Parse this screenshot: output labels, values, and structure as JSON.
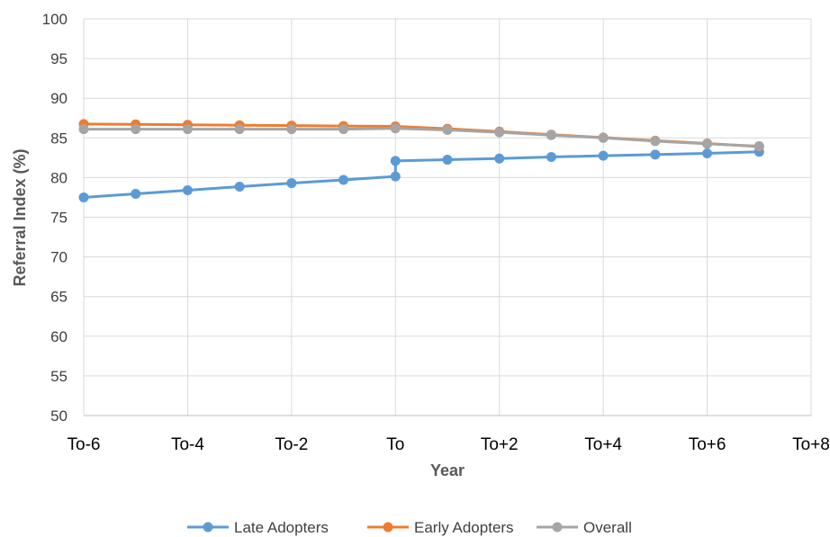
{
  "chart_data": {
    "type": "line",
    "xlabel": "Year",
    "ylabel": "Referral Index (%)",
    "ylim": [
      50,
      100
    ],
    "ytick_step": 5,
    "x_tick_labels": [
      "To-6",
      "To-4",
      "To-2",
      "To",
      "To+2",
      "To+4",
      "To+6",
      "To+8"
    ],
    "x_tick_values": [
      -6,
      -4,
      -2,
      0,
      2,
      4,
      6,
      8
    ],
    "xlim": [
      -6,
      8
    ],
    "grid": true,
    "legend_position": "bottom",
    "series": [
      {
        "name": "Late Adopters",
        "color": "#5B9BD5",
        "points": [
          [
            -6,
            77.5
          ],
          [
            -5,
            77.95
          ],
          [
            -4,
            78.4
          ],
          [
            -3,
            78.85
          ],
          [
            -2,
            79.3
          ],
          [
            -1,
            79.7
          ],
          [
            0,
            80.15
          ],
          [
            0,
            82.1
          ],
          [
            1,
            82.25
          ],
          [
            2,
            82.4
          ],
          [
            3,
            82.6
          ],
          [
            4,
            82.75
          ],
          [
            5,
            82.9
          ],
          [
            6,
            83.05
          ],
          [
            7,
            83.25
          ]
        ]
      },
      {
        "name": "Early Adopters",
        "color": "#ED7D31",
        "points": [
          [
            -6,
            86.75
          ],
          [
            -5,
            86.7
          ],
          [
            -4,
            86.65
          ],
          [
            -3,
            86.6
          ],
          [
            -2,
            86.55
          ],
          [
            -1,
            86.5
          ],
          [
            0,
            86.45
          ],
          [
            1,
            86.15
          ],
          [
            2,
            85.8
          ],
          [
            3,
            85.4
          ],
          [
            4,
            85.05
          ],
          [
            5,
            84.65
          ],
          [
            6,
            84.3
          ],
          [
            7,
            83.9
          ]
        ]
      },
      {
        "name": "Overall",
        "color": "#A5A5A5",
        "points": [
          [
            -6,
            86.1
          ],
          [
            -5,
            86.1
          ],
          [
            -4,
            86.1
          ],
          [
            -3,
            86.1
          ],
          [
            -2,
            86.1
          ],
          [
            -1,
            86.1
          ],
          [
            0,
            86.2
          ],
          [
            1,
            86.0
          ],
          [
            2,
            85.7
          ],
          [
            3,
            85.35
          ],
          [
            4,
            85.0
          ],
          [
            5,
            84.6
          ],
          [
            6,
            84.25
          ],
          [
            7,
            83.95
          ]
        ]
      }
    ]
  }
}
